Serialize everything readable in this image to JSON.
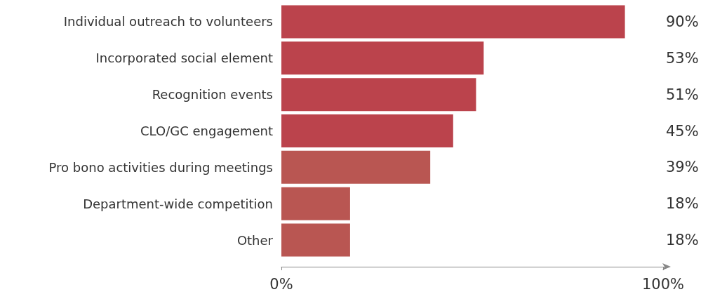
{
  "chart_data": {
    "type": "bar",
    "orientation": "horizontal",
    "categories": [
      "Individual outreach to volunteers",
      "Incorporated social element",
      "Recognition events",
      "CLO/GC engagement",
      "Pro bono activities during meetings",
      "Department-wide competition",
      "Other"
    ],
    "values": [
      90,
      53,
      51,
      45,
      39,
      18,
      18
    ],
    "value_labels": [
      "90%",
      "53%",
      "51%",
      "45%",
      "39%",
      "18%",
      "18%"
    ],
    "colors": [
      "#bb434c",
      "#bb434c",
      "#bb434c",
      "#bb434c",
      "#b95652",
      "#b95652",
      "#b95652"
    ],
    "xlim": [
      0,
      100
    ],
    "xticks": [
      {
        "value": 0,
        "label": "0%"
      },
      {
        "value": 100,
        "label": "100%"
      }
    ],
    "grid": false
  }
}
